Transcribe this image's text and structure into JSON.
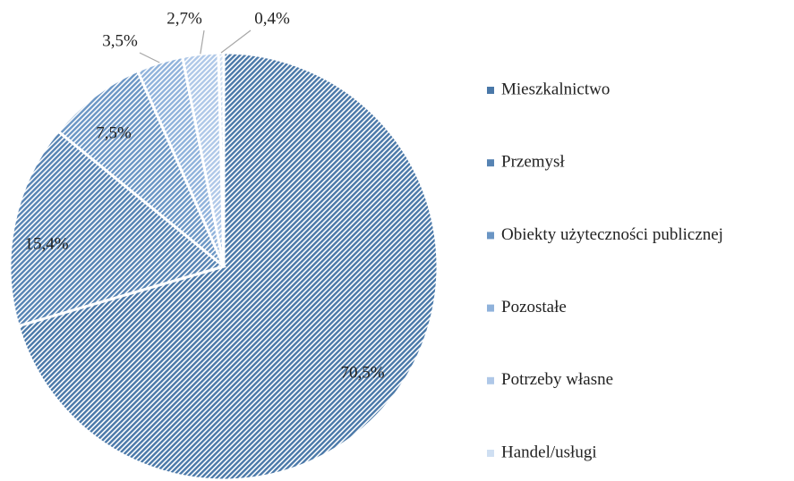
{
  "chart_data": {
    "type": "pie",
    "categories": [
      "Mieszkalnictwo",
      "Przemysł",
      "Obiekty użyteczności publicznej",
      "Pozostałe",
      "Potrzeby własne",
      "Handel/usługi"
    ],
    "values": [
      70.5,
      15.4,
      7.5,
      3.5,
      2.7,
      0.4
    ],
    "value_labels": [
      "70,5%",
      "15,4%",
      "7,5%",
      "3,5%",
      "2,7%",
      "0,4%"
    ],
    "colors": [
      "#4a78a8",
      "#5683b3",
      "#6a95c4",
      "#8fb2db",
      "#afc8e8",
      "#cfdff2"
    ],
    "legend": "right"
  }
}
